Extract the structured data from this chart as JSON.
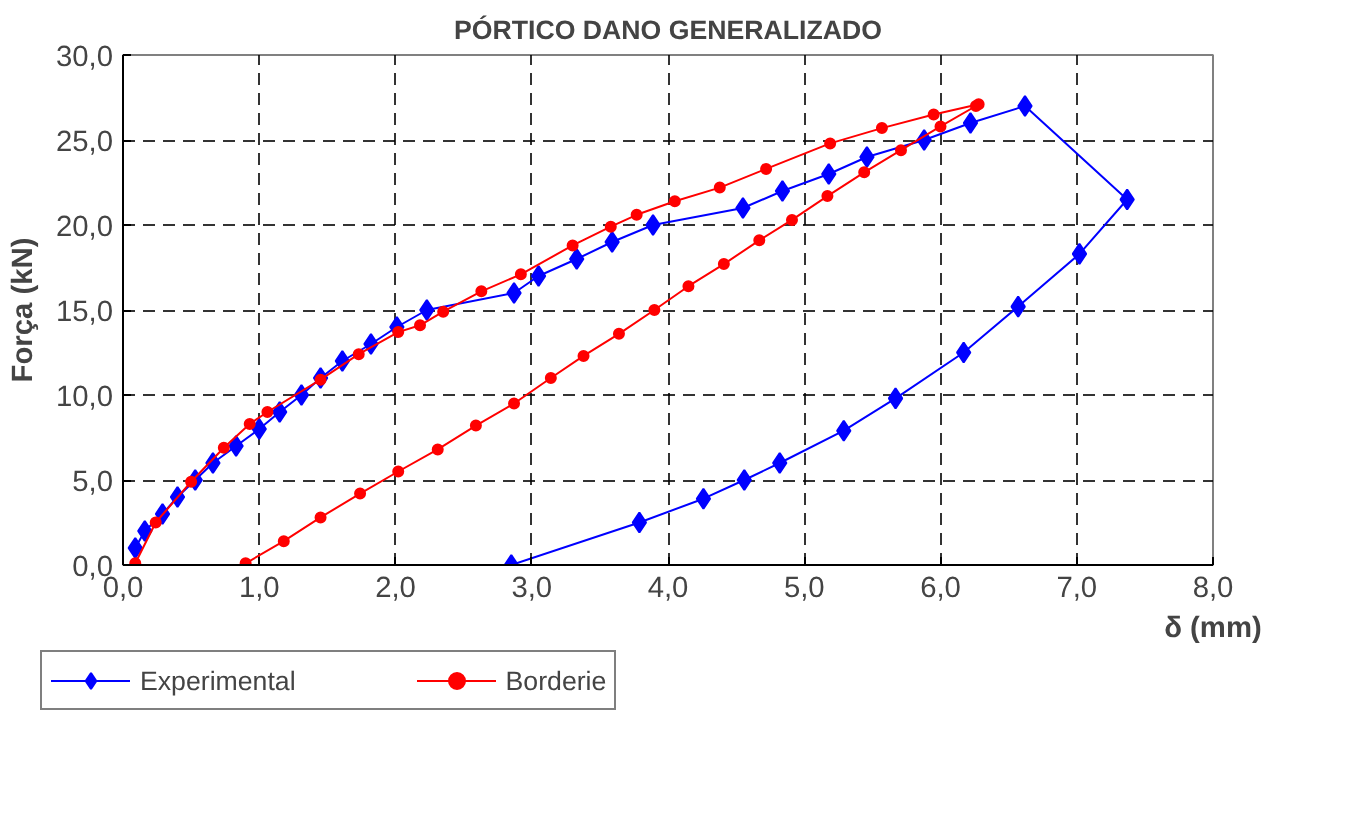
{
  "chart_data": {
    "type": "line",
    "title": "PÓRTICO DANO GENERALIZADO",
    "xlabel": "δ (mm)",
    "ylabel": "Força (kN)",
    "xlim": [
      0,
      8
    ],
    "ylim": [
      0,
      30
    ],
    "xticks": [
      {
        "value": 0,
        "label": "0,0"
      },
      {
        "value": 1,
        "label": "1,0"
      },
      {
        "value": 2,
        "label": "2,0"
      },
      {
        "value": 3,
        "label": "3,0"
      },
      {
        "value": 4,
        "label": "4,0"
      },
      {
        "value": 5,
        "label": "5,0"
      },
      {
        "value": 6,
        "label": "6,0"
      },
      {
        "value": 7,
        "label": "7,0"
      },
      {
        "value": 8,
        "label": "8,0"
      }
    ],
    "yticks": [
      {
        "value": 0,
        "label": "0,0"
      },
      {
        "value": 5,
        "label": "5,0"
      },
      {
        "value": 10,
        "label": "10,0"
      },
      {
        "value": 15,
        "label": "15,0"
      },
      {
        "value": 20,
        "label": "20,0"
      },
      {
        "value": 25,
        "label": "25,0"
      },
      {
        "value": 30,
        "label": "30,0"
      }
    ],
    "grid": true,
    "legend": "bottom",
    "line_style": "solid",
    "series": [
      {
        "name": "Experimental",
        "color": "#0000ff",
        "marker": "diamond",
        "x": [
          0.09,
          0.16,
          0.29,
          0.4,
          0.53,
          0.66,
          0.83,
          1.0,
          1.15,
          1.31,
          1.45,
          1.61,
          1.82,
          2.01,
          2.23,
          2.87,
          3.05,
          3.33,
          3.59,
          3.89,
          4.55,
          4.84,
          5.18,
          5.46,
          5.88,
          6.22,
          6.62,
          7.37,
          7.02,
          6.57,
          6.17,
          5.67,
          5.29,
          4.82,
          4.56,
          4.26,
          3.79,
          2.85
        ],
        "values": [
          1,
          2,
          3,
          4,
          5,
          6,
          7,
          8,
          9,
          10,
          11,
          12,
          13,
          14,
          15,
          16,
          17,
          18,
          19,
          20,
          21,
          22,
          23,
          24,
          25,
          26,
          27,
          21.5,
          18.3,
          15.2,
          12.5,
          9.8,
          7.9,
          6,
          5,
          3.9,
          2.5,
          0
        ]
      },
      {
        "name": "Borderie",
        "color": "#ff0000",
        "marker": "circle",
        "x": [
          0.09,
          0.24,
          0.5,
          0.74,
          0.93,
          1.06,
          1.45,
          1.73,
          2.02,
          2.18,
          2.35,
          2.63,
          2.92,
          3.3,
          3.58,
          3.77,
          4.05,
          4.38,
          4.72,
          5.19,
          5.57,
          5.95,
          6.28,
          6.26,
          6.0,
          5.71,
          5.44,
          5.17,
          4.91,
          4.67,
          4.41,
          4.15,
          3.9,
          3.64,
          3.38,
          3.14,
          2.87,
          2.59,
          2.31,
          2.02,
          1.74,
          1.45,
          1.18,
          0.9
        ],
        "values": [
          0.1,
          2.5,
          4.9,
          6.9,
          8.3,
          9.0,
          10.9,
          12.4,
          13.7,
          14.1,
          14.9,
          16.1,
          17.1,
          18.8,
          19.9,
          20.6,
          21.4,
          22.2,
          23.3,
          24.8,
          25.7,
          26.5,
          27.1,
          27.0,
          25.8,
          24.4,
          23.1,
          21.7,
          20.3,
          19.1,
          17.7,
          16.4,
          15.0,
          13.6,
          12.3,
          11.0,
          9.5,
          8.2,
          6.8,
          5.5,
          4.2,
          2.8,
          1.4,
          0.1
        ]
      }
    ]
  }
}
